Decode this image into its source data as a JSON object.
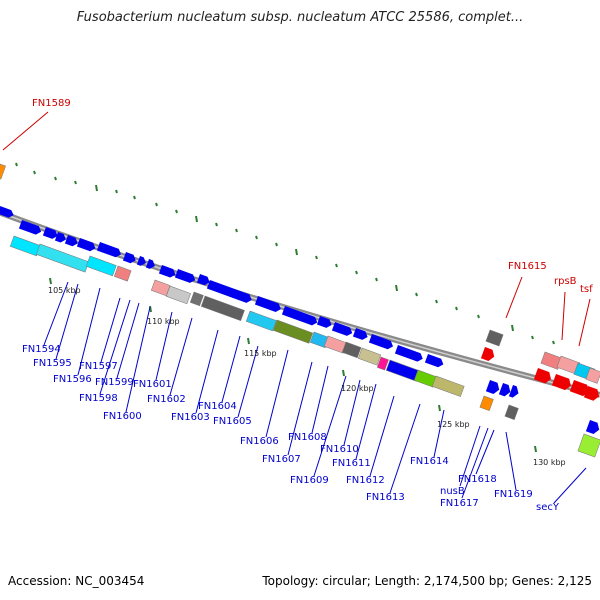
{
  "title": "Fusobacterium nucleatum subsp. nucleatum ATCC 25586, complet...",
  "footer": {
    "accession": "Accession: NC_003454",
    "summary": "Topology: circular; Length: 2,174,500 bp; Genes: 2,125"
  },
  "colors": {
    "blue_label": "#0000cc",
    "red_label": "#cc0000",
    "backbone": "#8a8a8a",
    "tick": "#2e7d32"
  },
  "ruler": [
    "105 kbp",
    "110 kbp",
    "115 kbp",
    "120 kbp",
    "125 kbp",
    "130 kbp"
  ],
  "labels": {
    "top": [
      {
        "id": "fn1589",
        "text": "FN1589",
        "color": "red"
      },
      {
        "id": "fn1615",
        "text": "FN1615",
        "color": "red"
      },
      {
        "id": "rpsb",
        "text": "rpsB",
        "color": "red"
      },
      {
        "id": "tsf",
        "text": "tsf",
        "color": "red"
      }
    ],
    "bottom": [
      {
        "id": "fn1594",
        "text": "FN1594"
      },
      {
        "id": "fn1595",
        "text": "FN1595"
      },
      {
        "id": "fn1596",
        "text": "FN1596"
      },
      {
        "id": "fn1597",
        "text": "FN1597"
      },
      {
        "id": "fn1598",
        "text": "FN1598"
      },
      {
        "id": "fn1599",
        "text": "FN1599"
      },
      {
        "id": "fn1600",
        "text": "FN1600"
      },
      {
        "id": "fn1601",
        "text": "FN1601"
      },
      {
        "id": "fn1602",
        "text": "FN1602"
      },
      {
        "id": "fn1603",
        "text": "FN1603"
      },
      {
        "id": "fn1604",
        "text": "FN1604"
      },
      {
        "id": "fn1605",
        "text": "FN1605"
      },
      {
        "id": "fn1606",
        "text": "FN1606"
      },
      {
        "id": "fn1607",
        "text": "FN1607"
      },
      {
        "id": "fn1608",
        "text": "FN1608"
      },
      {
        "id": "fn1609",
        "text": "FN1609"
      },
      {
        "id": "fn1610",
        "text": "FN1610"
      },
      {
        "id": "fn1611",
        "text": "FN1611"
      },
      {
        "id": "fn1612",
        "text": "FN1612"
      },
      {
        "id": "fn1613",
        "text": "FN1613"
      },
      {
        "id": "fn1614",
        "text": "FN1614"
      },
      {
        "id": "nusb",
        "text": "nusB"
      },
      {
        "id": "fn1617",
        "text": "FN1617"
      },
      {
        "id": "fn1618",
        "text": "FN1618"
      },
      {
        "id": "fn1619",
        "text": "FN1619"
      },
      {
        "id": "secy",
        "text": "secY"
      }
    ]
  }
}
